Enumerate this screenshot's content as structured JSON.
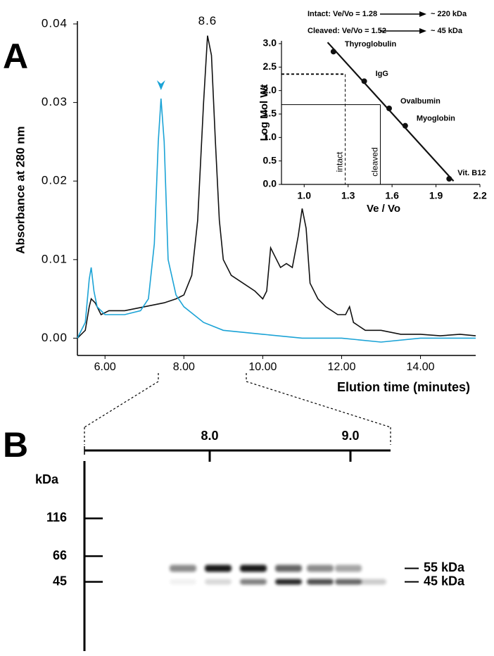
{
  "chart_data": [
    {
      "type": "line",
      "panel_label": "A",
      "xlabel": "Elution time (minutes)",
      "ylabel": "Absorbance at 280 nm",
      "xlim": [
        5.3,
        15.4
      ],
      "ylim": [
        -0.0022,
        0.04
      ],
      "xticks": [
        {
          "value": 6,
          "label": "6.00"
        },
        {
          "value": 8,
          "label": "8.00"
        },
        {
          "value": 10,
          "label": "10.00"
        },
        {
          "value": 12,
          "label": "12.00"
        },
        {
          "value": 14,
          "label": "14.00"
        }
      ],
      "yticks": [
        {
          "value": 0,
          "label": "0.00"
        },
        {
          "value": 0.01,
          "label": "0.01"
        },
        {
          "value": 0.02,
          "label": "0.02"
        },
        {
          "value": 0.03,
          "label": "0.03"
        },
        {
          "value": 0.04,
          "label": "0.04"
        }
      ],
      "annotations": [
        {
          "text": "8.6",
          "x": 8.6,
          "y": 0.0385
        }
      ],
      "series": [
        {
          "color": "#111111",
          "x": [
            5.3,
            5.5,
            5.6,
            5.65,
            5.75,
            5.9,
            6.1,
            6.5,
            7.0,
            7.5,
            7.8,
            8.0,
            8.2,
            8.35,
            8.5,
            8.6,
            8.7,
            8.8,
            8.9,
            9.0,
            9.2,
            9.5,
            9.8,
            10.0,
            10.1,
            10.2,
            10.3,
            10.45,
            10.6,
            10.75,
            10.9,
            11.0,
            11.1,
            11.2,
            11.4,
            11.6,
            11.9,
            12.1,
            12.2,
            12.3,
            12.6,
            13.0,
            13.5,
            14.0,
            14.5,
            15.0,
            15.4
          ],
          "values": [
            0.0,
            0.001,
            0.004,
            0.005,
            0.0045,
            0.003,
            0.0035,
            0.0035,
            0.004,
            0.0045,
            0.005,
            0.0055,
            0.008,
            0.015,
            0.03,
            0.0385,
            0.036,
            0.025,
            0.015,
            0.01,
            0.008,
            0.007,
            0.006,
            0.005,
            0.006,
            0.0115,
            0.0105,
            0.009,
            0.0095,
            0.009,
            0.013,
            0.0165,
            0.014,
            0.007,
            0.005,
            0.004,
            0.003,
            0.003,
            0.004,
            0.002,
            0.001,
            0.001,
            0.0005,
            0.0005,
            0.0003,
            0.0005,
            0.0003
          ]
        },
        {
          "color": "#1ba3d6",
          "marker_at_peak": true,
          "x": [
            5.3,
            5.5,
            5.6,
            5.65,
            5.72,
            5.8,
            6.0,
            6.5,
            6.9,
            7.1,
            7.25,
            7.35,
            7.42,
            7.5,
            7.6,
            7.8,
            8.0,
            8.5,
            9.0,
            10.0,
            11.0,
            12.0,
            13.0,
            14.0,
            15.4
          ],
          "values": [
            0.0,
            0.002,
            0.0075,
            0.009,
            0.006,
            0.004,
            0.003,
            0.003,
            0.0035,
            0.005,
            0.012,
            0.025,
            0.0305,
            0.025,
            0.01,
            0.0055,
            0.004,
            0.002,
            0.001,
            0.0005,
            0.0,
            0.0,
            -0.0005,
            0.0,
            0.0
          ]
        }
      ]
    },
    {
      "type": "scatter",
      "xlabel": "Ve / Vo",
      "ylabel": "Log Mol Wt",
      "xlim": [
        0.845,
        2.2
      ],
      "ylim": [
        0,
        3
      ],
      "xticks": [
        {
          "value": 1,
          "label": "1.0"
        },
        1.3,
        1.6,
        1.9,
        2.2
      ],
      "yticks": [
        {
          "value": 0,
          "label": "0.0"
        },
        0.5,
        {
          "value": 1,
          "label": "1.0"
        },
        1.5,
        {
          "value": 2,
          "label": "2.0"
        },
        2.5,
        {
          "value": 3,
          "label": "3.0"
        }
      ],
      "fit_line": true,
      "series": [
        {
          "color": "#111111",
          "x": [
            1.2,
            1.41,
            1.58,
            1.69,
            1.99
          ],
          "values": [
            2.83,
            2.2,
            1.62,
            1.25,
            0.12
          ],
          "labels": [
            "Thyroglobulin",
            "IgG",
            "Ovalbumin",
            "Myoglobin",
            "Vit. B12"
          ]
        }
      ],
      "reference_lines": [
        {
          "label": "intact",
          "x": 1.28,
          "y": 2.35,
          "dashed": true
        },
        {
          "label": "cleaved",
          "x": 1.52,
          "y": 1.7,
          "dashed": false
        }
      ],
      "notes": [
        {
          "text": "Intact:    Ve/Vo = 1.28",
          "result": "~ 220 kDa"
        },
        {
          "text": "Cleaved: Ve/Vo = 1.52",
          "result": "~ 45 kDa"
        }
      ]
    },
    {
      "type": "gel",
      "panel_label": "B",
      "xlim": [
        7.11,
        9.285
      ],
      "xticks": [
        {
          "value": 8,
          "label": "8.0"
        },
        {
          "value": 9,
          "label": "9.0"
        }
      ],
      "ylabel": "kDa",
      "log_scale": true,
      "ylim": [
        16,
        273
      ],
      "yticks": [
        116,
        66,
        45
      ],
      "band_labels": [
        {
          "value": 55,
          "label": "55 kDa"
        },
        {
          "value": 45,
          "label": "45 kDa"
        }
      ]
    }
  ]
}
